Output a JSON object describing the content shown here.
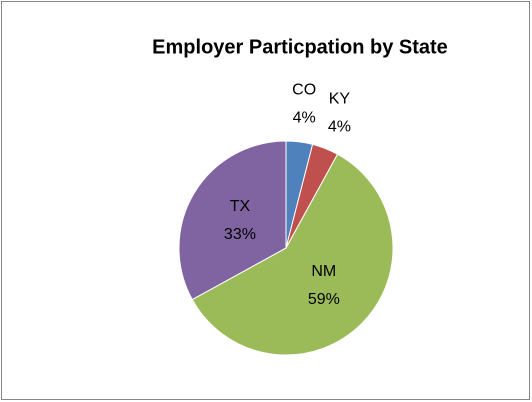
{
  "chart_data": {
    "type": "pie",
    "title": "Employer Particpation by State",
    "categories": [
      "CO",
      "KY",
      "NM",
      "TX"
    ],
    "values": [
      4,
      4,
      59,
      33
    ],
    "value_labels": [
      "4%",
      "4%",
      "59%",
      "33%"
    ],
    "colors": [
      "#4f81bd",
      "#c0504d",
      "#9bbb59",
      "#8064a2"
    ]
  }
}
